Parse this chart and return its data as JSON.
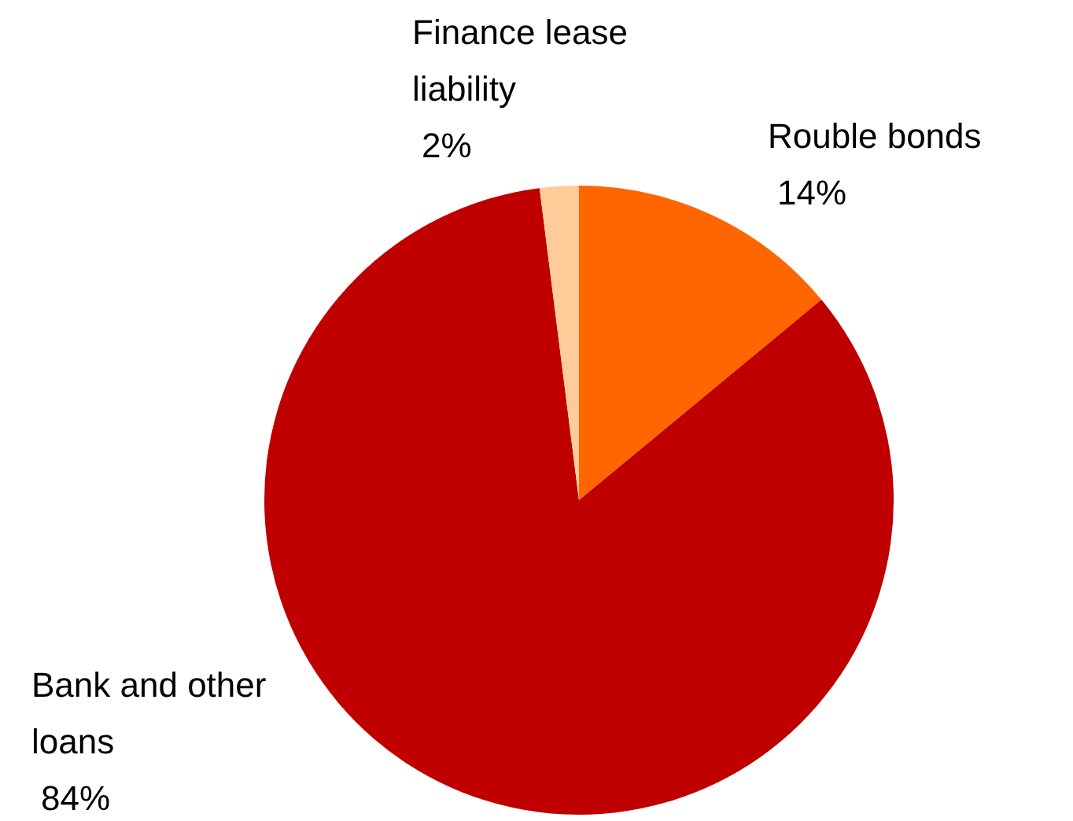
{
  "chart_data": {
    "type": "pie",
    "categories": [
      "Rouble bonds",
      "Bank and other loans",
      "Finance lease liability"
    ],
    "values": [
      14,
      84,
      2
    ],
    "colors": [
      "#ff6600",
      "#c00000",
      "#ffcc99"
    ],
    "value_labels": [
      "14%",
      "84%",
      "2%"
    ],
    "legend": false
  }
}
